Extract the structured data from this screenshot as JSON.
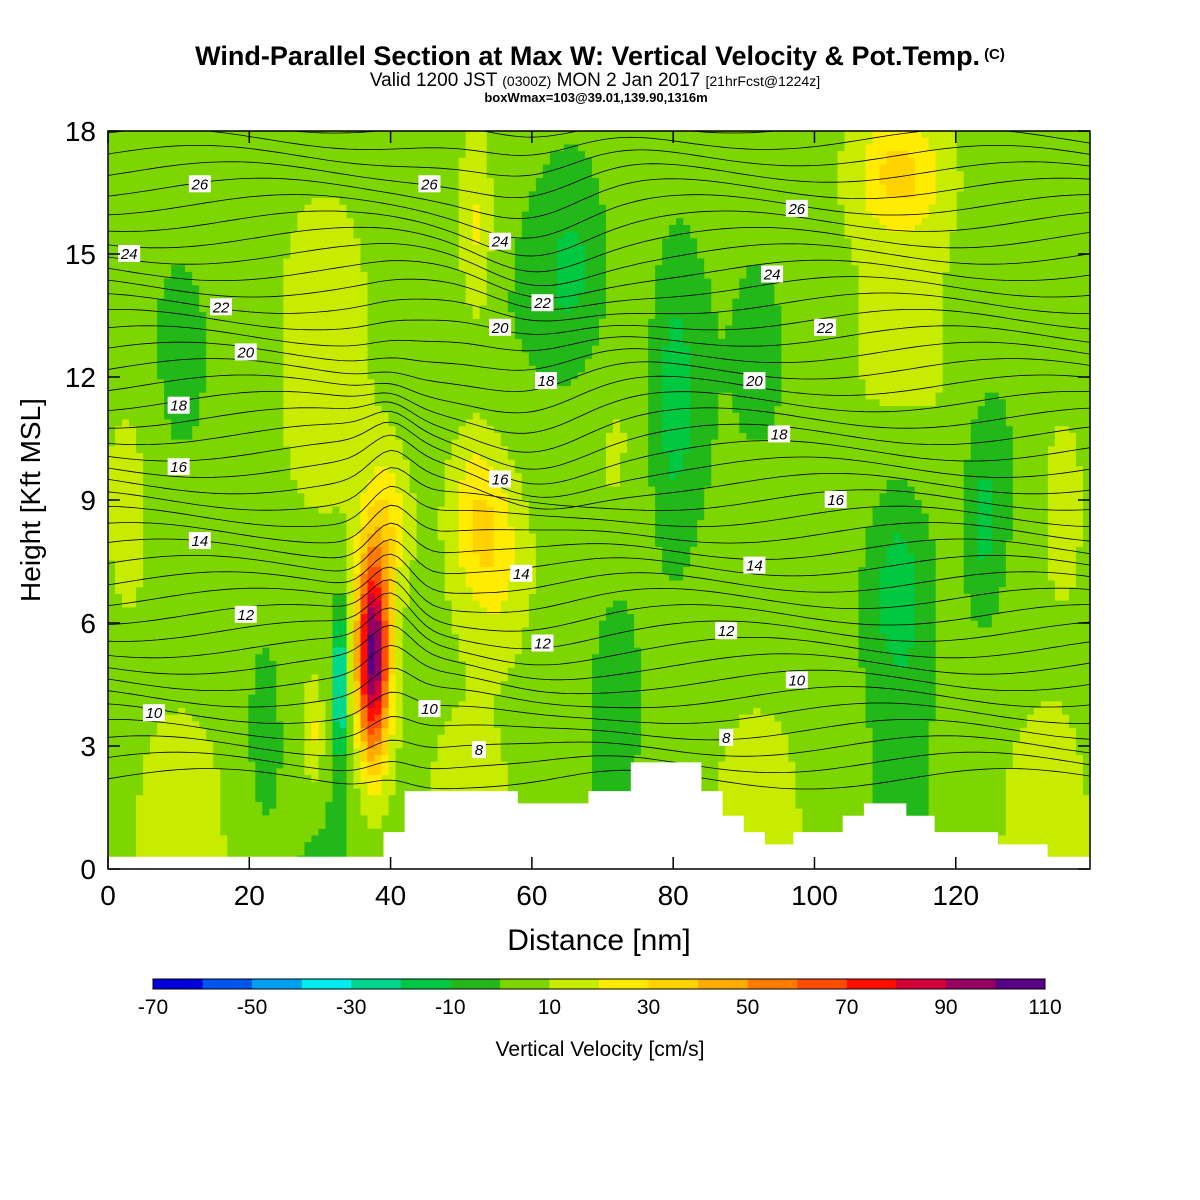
{
  "title": {
    "main": "Wind-Parallel Section at Max W: Vertical Velocity & Pot.Temp.",
    "copyright": "(C)",
    "valid_prefix": "Valid 1200 JST",
    "valid_utc": "(0300Z)",
    "valid_date": "MON 2 Jan 2017",
    "forecast": "[21hrFcst@1224z]",
    "box": "boxWmax=103@39.01,139.90,1316m"
  },
  "colors": {
    "bands": [
      "#0000dd",
      "#0055ee",
      "#00a0f0",
      "#00eeee",
      "#00d890",
      "#00c840",
      "#22b81a",
      "#7ed600",
      "#c8ec00",
      "#ffec00",
      "#ffd200",
      "#ffac00",
      "#ff7a00",
      "#ff4c00",
      "#ff0f00",
      "#d4003a",
      "#960060",
      "#5a0086"
    ],
    "terrain": "#ffffff",
    "contour": "#000000"
  },
  "chart_data": {
    "type": "heatmap",
    "xlabel": "Distance [nm]",
    "ylabel": "Height [Kft MSL]",
    "xlim": [
      0,
      139
    ],
    "ylim": [
      0,
      18
    ],
    "xticks": [
      0,
      20,
      40,
      60,
      80,
      100,
      120
    ],
    "yticks": [
      0,
      3,
      6,
      9,
      12,
      15,
      18
    ],
    "colorbar": {
      "label": "Vertical Velocity [cm/s]",
      "ticks": [
        -70,
        -50,
        -30,
        -10,
        10,
        30,
        50,
        70,
        90,
        110
      ],
      "range": [
        -70,
        110
      ],
      "step": 10
    },
    "vertical_velocity_regions": [
      {
        "x": [
          33,
          42
        ],
        "y": [
          2.5,
          9.5
        ],
        "peak": 103
      },
      {
        "x": [
          31.5,
          34
        ],
        "y": [
          2.8,
          6.5
        ],
        "min": -30
      },
      {
        "x": [
          46,
          62
        ],
        "y": [
          6.5,
          11
        ],
        "peak": 35
      },
      {
        "x": [
          60,
          75
        ],
        "y": [
          12,
          16
        ],
        "min": -20
      },
      {
        "x": [
          75,
          88
        ],
        "y": [
          9,
          14
        ],
        "min": -20
      },
      {
        "x": [
          100,
          130
        ],
        "y": [
          5,
          10
        ],
        "min": -20
      },
      {
        "x": [
          105,
          122
        ],
        "y": [
          16,
          18
        ],
        "peak": 30
      }
    ],
    "theta_contour_labels": [
      {
        "value": "26",
        "x": 13,
        "y": 16.7
      },
      {
        "value": "26",
        "x": 45.5,
        "y": 16.7
      },
      {
        "value": "26",
        "x": 97.5,
        "y": 16.1
      },
      {
        "value": "24",
        "x": 3,
        "y": 15.0
      },
      {
        "value": "24",
        "x": 55.5,
        "y": 15.3
      },
      {
        "value": "24",
        "x": 94,
        "y": 14.5
      },
      {
        "value": "22",
        "x": 16,
        "y": 13.7
      },
      {
        "value": "22",
        "x": 61.5,
        "y": 13.8
      },
      {
        "value": "22",
        "x": 101.5,
        "y": 13.2
      },
      {
        "value": "20",
        "x": 19.5,
        "y": 12.6
      },
      {
        "value": "20",
        "x": 55.5,
        "y": 13.2
      },
      {
        "value": "20",
        "x": 91.5,
        "y": 11.9
      },
      {
        "value": "18",
        "x": 10,
        "y": 11.3
      },
      {
        "value": "18",
        "x": 62,
        "y": 11.9
      },
      {
        "value": "18",
        "x": 95,
        "y": 10.6
      },
      {
        "value": "16",
        "x": 10,
        "y": 9.8
      },
      {
        "value": "16",
        "x": 55.5,
        "y": 9.5
      },
      {
        "value": "16",
        "x": 103,
        "y": 9.0
      },
      {
        "value": "14",
        "x": 13,
        "y": 8.0
      },
      {
        "value": "14",
        "x": 58.5,
        "y": 7.2
      },
      {
        "value": "14",
        "x": 91.5,
        "y": 7.4
      },
      {
        "value": "12",
        "x": 19.5,
        "y": 6.2
      },
      {
        "value": "12",
        "x": 61.5,
        "y": 5.5
      },
      {
        "value": "12",
        "x": 87.5,
        "y": 5.8
      },
      {
        "value": "10",
        "x": 6.5,
        "y": 3.8
      },
      {
        "value": "10",
        "x": 45.5,
        "y": 3.9
      },
      {
        "value": "10",
        "x": 97.5,
        "y": 4.6
      },
      {
        "value": "8",
        "x": 52.5,
        "y": 2.9
      },
      {
        "value": "8",
        "x": 87.5,
        "y": 3.2
      }
    ],
    "terrain_profile": [
      [
        0,
        0.3
      ],
      [
        39,
        0.3
      ],
      [
        39,
        0.9
      ],
      [
        42,
        0.9
      ],
      [
        42,
        1.9
      ],
      [
        58,
        1.9
      ],
      [
        58,
        1.6
      ],
      [
        68,
        1.6
      ],
      [
        68,
        1.9
      ],
      [
        74,
        1.9
      ],
      [
        74,
        2.6
      ],
      [
        84,
        2.6
      ],
      [
        84,
        1.9
      ],
      [
        87,
        1.9
      ],
      [
        87,
        1.3
      ],
      [
        90,
        1.3
      ],
      [
        90,
        0.9
      ],
      [
        93,
        0.9
      ],
      [
        93,
        0.6
      ],
      [
        97,
        0.6
      ],
      [
        97,
        0.9
      ],
      [
        104,
        0.9
      ],
      [
        104,
        1.3
      ],
      [
        107,
        1.3
      ],
      [
        107,
        1.6
      ],
      [
        113,
        1.6
      ],
      [
        113,
        1.3
      ],
      [
        117,
        1.3
      ],
      [
        117,
        0.9
      ],
      [
        126,
        0.9
      ],
      [
        126,
        0.6
      ],
      [
        133,
        0.6
      ],
      [
        133,
        0.3
      ],
      [
        139,
        0.3
      ]
    ]
  }
}
